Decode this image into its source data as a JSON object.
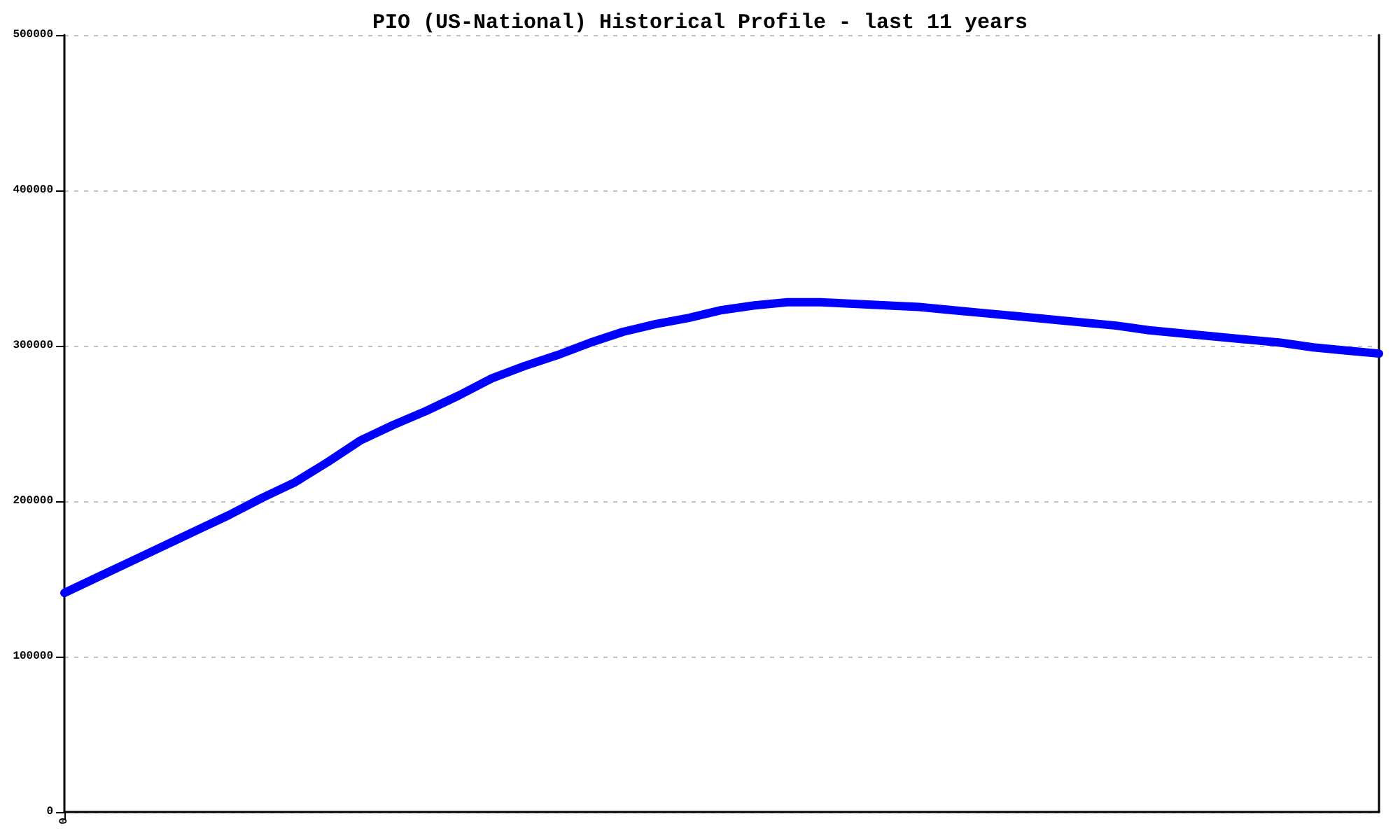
{
  "chart_data": {
    "type": "line",
    "title": "PIO (US-National) Historical Profile - last 11 years",
    "categories": [
      "0",
      null,
      null,
      null,
      null,
      null,
      null,
      null,
      null,
      null,
      null,
      null,
      null,
      null,
      null,
      null,
      null,
      null,
      null,
      null,
      null,
      null,
      null,
      null,
      null,
      null,
      null,
      null,
      null,
      null,
      null,
      null,
      null,
      null,
      null,
      null,
      null,
      null,
      null,
      null,
      null
    ],
    "series": [
      {
        "color": "#0000ff",
        "values": [
          141000,
          151000,
          161000,
          171000,
          181000,
          191000,
          202000,
          212000,
          225000,
          239000,
          249000,
          258000,
          268000,
          279000,
          287000,
          294000,
          302000,
          309000,
          314000,
          318000,
          323000,
          326000,
          328000,
          328000,
          327000,
          326000,
          325000,
          323000,
          321000,
          319000,
          317000,
          315000,
          313000,
          310000,
          308000,
          306000,
          304000,
          302000,
          299000,
          297000,
          295000
        ]
      }
    ],
    "ylim": [
      0,
      500000
    ],
    "yticks": [
      0,
      100000,
      200000,
      300000,
      400000,
      500000
    ],
    "grid": "y"
  }
}
